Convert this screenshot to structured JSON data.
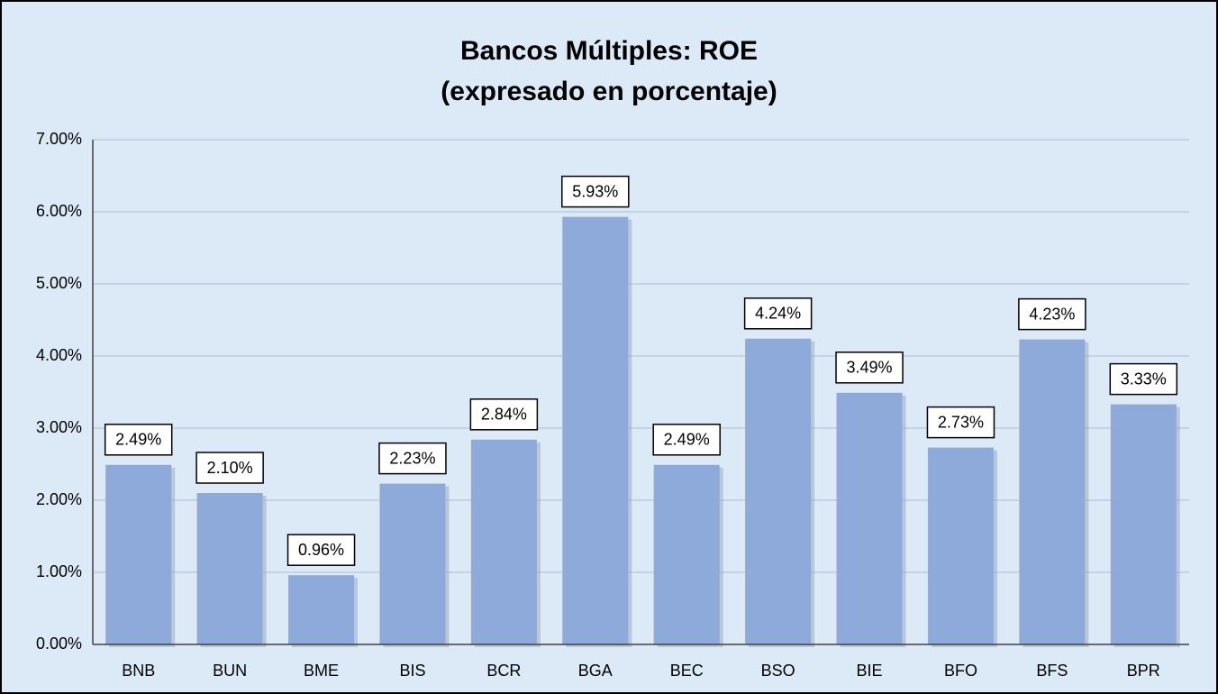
{
  "chart_data": {
    "type": "bar",
    "title": "Bancos Múltiples: ROE",
    "subtitle": "(expresado en porcentaje)",
    "categories": [
      "BNB",
      "BUN",
      "BME",
      "BIS",
      "BCR",
      "BGA",
      "BEC",
      "BSO",
      "BIE",
      "BFO",
      "BFS",
      "BPR"
    ],
    "values": [
      2.49,
      2.1,
      0.96,
      2.23,
      2.84,
      5.93,
      2.49,
      4.24,
      3.49,
      2.73,
      4.23,
      3.33
    ],
    "value_labels": [
      "2.49%",
      "2.10%",
      "0.96%",
      "2.23%",
      "2.84%",
      "5.93%",
      "2.49%",
      "4.24%",
      "3.49%",
      "2.73%",
      "4.23%",
      "3.33%"
    ],
    "color": "#8eaadb",
    "ylim": [
      0,
      7
    ],
    "yticks": [
      {
        "value": 0,
        "label": "0.00%"
      },
      {
        "value": 1,
        "label": "1.00%"
      },
      {
        "value": 2,
        "label": "2.00%"
      },
      {
        "value": 3,
        "label": "3.00%"
      },
      {
        "value": 4,
        "label": "4.00%"
      },
      {
        "value": 5,
        "label": "5.00%"
      },
      {
        "value": 6,
        "label": "6.00%"
      },
      {
        "value": 7,
        "label": "7.00%"
      }
    ],
    "grid": true
  }
}
